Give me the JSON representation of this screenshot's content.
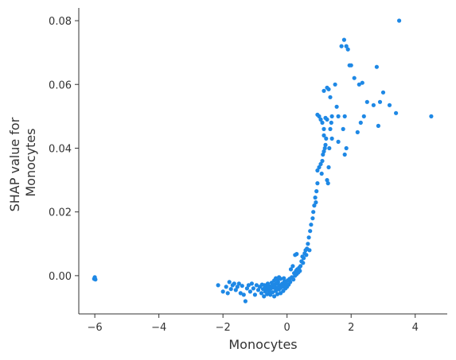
{
  "chart_data": {
    "type": "scatter",
    "title": "",
    "xlabel": "Monocytes",
    "ylabel_lines": [
      "SHAP value for",
      "Monocytes"
    ],
    "xlim": [
      -6.5,
      5.0
    ],
    "ylim": [
      -0.012,
      0.084
    ],
    "xticks": [
      -6,
      -4,
      -2,
      0,
      2,
      4
    ],
    "xtick_labels": [
      "−6",
      "−4",
      "−2",
      "0",
      "2",
      "4"
    ],
    "yticks": [
      0.0,
      0.02,
      0.04,
      0.06,
      0.08
    ],
    "ytick_labels": [
      "0.00",
      "0.02",
      "0.04",
      "0.06",
      "0.08"
    ],
    "grid": false,
    "point_color": "#1E88E5",
    "axis_color": "#333333",
    "points": [
      [
        -6.0,
        -0.0005
      ],
      [
        -6.0,
        -0.0008
      ],
      [
        -5.98,
        -0.0012
      ],
      [
        -6.02,
        -0.001
      ],
      [
        -2.15,
        -0.003
      ],
      [
        -2.0,
        -0.005
      ],
      [
        -1.9,
        -0.0035
      ],
      [
        -1.85,
        -0.0055
      ],
      [
        -1.8,
        -0.002
      ],
      [
        -1.75,
        -0.0042
      ],
      [
        -1.7,
        -0.003
      ],
      [
        -1.65,
        -0.0025
      ],
      [
        -1.6,
        -0.0045
      ],
      [
        -1.55,
        -0.0035
      ],
      [
        -1.5,
        -0.0025
      ],
      [
        -1.45,
        -0.0055
      ],
      [
        -1.4,
        -0.0032
      ],
      [
        -1.35,
        -0.006
      ],
      [
        -1.3,
        -0.008
      ],
      [
        -1.25,
        -0.004
      ],
      [
        -1.2,
        -0.003
      ],
      [
        -1.15,
        -0.005
      ],
      [
        -1.1,
        -0.0025
      ],
      [
        -1.05,
        -0.004
      ],
      [
        -1.0,
        -0.006
      ],
      [
        -0.95,
        -0.003
      ],
      [
        -0.9,
        -0.0045
      ],
      [
        -0.85,
        -0.0035
      ],
      [
        -0.8,
        -0.0055
      ],
      [
        -0.78,
        -0.0028
      ],
      [
        -0.75,
        -0.0042
      ],
      [
        -0.72,
        -0.0065
      ],
      [
        -0.7,
        -0.003
      ],
      [
        -0.68,
        -0.005
      ],
      [
        -0.65,
        -0.0038
      ],
      [
        -0.62,
        -0.0058
      ],
      [
        -0.6,
        -0.0025
      ],
      [
        -0.58,
        -0.0045
      ],
      [
        -0.55,
        -0.0033
      ],
      [
        -0.52,
        -0.006
      ],
      [
        -0.5,
        -0.004
      ],
      [
        -0.48,
        -0.0022
      ],
      [
        -0.45,
        -0.0052
      ],
      [
        -0.42,
        -0.0035
      ],
      [
        -0.4,
        -0.0065
      ],
      [
        -0.38,
        -0.0028
      ],
      [
        -0.35,
        -0.0048
      ],
      [
        -0.33,
        -0.0038
      ],
      [
        -0.3,
        -0.0058
      ],
      [
        -0.28,
        -0.002
      ],
      [
        -0.25,
        -0.0043
      ],
      [
        -0.22,
        -0.003
      ],
      [
        -0.2,
        -0.0055
      ],
      [
        -0.18,
        -0.0036
      ],
      [
        -0.15,
        -0.0025
      ],
      [
        -0.12,
        -0.0048
      ],
      [
        -0.1,
        -0.003
      ],
      [
        -0.08,
        -0.0018
      ],
      [
        -0.05,
        -0.004
      ],
      [
        -0.02,
        -0.0026
      ],
      [
        0.0,
        -0.0035
      ],
      [
        0.02,
        -0.0015
      ],
      [
        0.05,
        -0.0028
      ],
      [
        0.08,
        -0.001
      ],
      [
        -0.45,
        -0.003
      ],
      [
        -0.4,
        -0.0038
      ],
      [
        -0.35,
        -0.0025
      ],
      [
        -0.3,
        -0.0042
      ],
      [
        -0.25,
        -0.003
      ],
      [
        -0.2,
        -0.0038
      ],
      [
        -0.15,
        -0.0028
      ],
      [
        -0.1,
        -0.0035
      ],
      [
        -0.05,
        -0.0022
      ],
      [
        0.0,
        -0.0028
      ],
      [
        -0.6,
        -0.0035
      ],
      [
        -0.55,
        -0.005
      ],
      [
        -0.65,
        -0.0045
      ],
      [
        -0.7,
        -0.004
      ],
      [
        -0.4,
        -0.0015
      ],
      [
        -0.3,
        -0.0012
      ],
      [
        -0.2,
        -0.001
      ],
      [
        -0.1,
        -0.0008
      ],
      [
        -0.35,
        -0.0008
      ],
      [
        -0.25,
        -0.0005
      ],
      [
        0.1,
        -0.002
      ],
      [
        0.15,
        -0.0005
      ],
      [
        0.2,
        -0.0012
      ],
      [
        0.22,
        0.0008
      ],
      [
        0.25,
        0.0
      ],
      [
        0.28,
        0.0015
      ],
      [
        0.3,
        0.0005
      ],
      [
        0.32,
        0.002
      ],
      [
        0.35,
        0.001
      ],
      [
        0.38,
        0.0025
      ],
      [
        0.4,
        0.0015
      ],
      [
        0.42,
        0.003
      ],
      [
        0.45,
        0.0045
      ],
      [
        0.48,
        0.006
      ],
      [
        0.5,
        0.004
      ],
      [
        0.52,
        0.0055
      ],
      [
        0.55,
        0.007
      ],
      [
        0.58,
        0.008
      ],
      [
        0.6,
        0.0065
      ],
      [
        0.62,
        0.0085
      ],
      [
        0.65,
        0.01
      ],
      [
        0.68,
        0.012
      ],
      [
        0.7,
        0.008
      ],
      [
        0.72,
        0.014
      ],
      [
        0.75,
        0.016
      ],
      [
        0.8,
        0.018
      ],
      [
        0.82,
        0.02
      ],
      [
        0.85,
        0.022
      ],
      [
        0.88,
        0.0245
      ],
      [
        0.9,
        0.023
      ],
      [
        0.92,
        0.0265
      ],
      [
        0.95,
        0.029
      ],
      [
        0.25,
        0.0065
      ],
      [
        0.3,
        0.0068
      ],
      [
        0.18,
        0.003
      ],
      [
        0.12,
        0.002
      ],
      [
        0.95,
        0.033
      ],
      [
        1.0,
        0.034
      ],
      [
        1.05,
        0.035
      ],
      [
        1.08,
        0.032
      ],
      [
        1.1,
        0.036
      ],
      [
        1.12,
        0.038
      ],
      [
        1.15,
        0.039
      ],
      [
        1.18,
        0.04
      ],
      [
        1.2,
        0.041
      ],
      [
        1.22,
        0.043
      ],
      [
        1.25,
        0.03
      ],
      [
        1.28,
        0.029
      ],
      [
        1.3,
        0.034
      ],
      [
        1.32,
        0.04
      ],
      [
        1.35,
        0.046
      ],
      [
        1.38,
        0.048
      ],
      [
        1.4,
        0.05
      ],
      [
        1.15,
        0.046
      ],
      [
        1.1,
        0.048
      ],
      [
        1.05,
        0.049
      ],
      [
        0.95,
        0.0505
      ],
      [
        1.0,
        0.05
      ],
      [
        1.2,
        0.0495
      ],
      [
        1.25,
        0.049
      ],
      [
        1.15,
        0.058
      ],
      [
        1.25,
        0.059
      ],
      [
        1.3,
        0.0585
      ],
      [
        1.35,
        0.056
      ],
      [
        1.5,
        0.06
      ],
      [
        1.55,
        0.053
      ],
      [
        1.6,
        0.05
      ],
      [
        1.7,
        0.072
      ],
      [
        1.78,
        0.074
      ],
      [
        1.8,
        0.05
      ],
      [
        1.85,
        0.072
      ],
      [
        1.9,
        0.071
      ],
      [
        1.85,
        0.04
      ],
      [
        1.8,
        0.038
      ],
      [
        1.95,
        0.066
      ],
      [
        2.0,
        0.066
      ],
      [
        2.1,
        0.062
      ],
      [
        2.2,
        0.045
      ],
      [
        2.25,
        0.06
      ],
      [
        2.3,
        0.048
      ],
      [
        2.35,
        0.0605
      ],
      [
        2.4,
        0.05
      ],
      [
        2.5,
        0.0545
      ],
      [
        2.7,
        0.0535
      ],
      [
        2.8,
        0.0655
      ],
      [
        2.85,
        0.047
      ],
      [
        2.9,
        0.0545
      ],
      [
        3.0,
        0.0575
      ],
      [
        3.2,
        0.0535
      ],
      [
        3.4,
        0.051
      ],
      [
        3.5,
        0.08
      ],
      [
        4.5,
        0.05
      ],
      [
        1.15,
        0.044
      ],
      [
        1.4,
        0.043
      ],
      [
        1.6,
        0.042
      ],
      [
        1.75,
        0.046
      ]
    ]
  }
}
